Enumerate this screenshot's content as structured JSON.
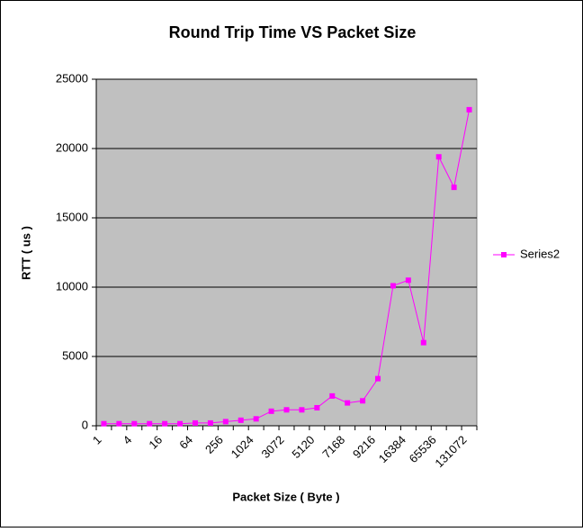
{
  "chart_data": {
    "type": "line",
    "title": "Round Trip Time  VS  Packet Size",
    "x_label": "Packet Size ( Byte )",
    "y_label": "RTT ( us )",
    "categories": [
      "1",
      null,
      "4",
      null,
      "16",
      null,
      "64",
      null,
      "256",
      null,
      "1024",
      null,
      "3072",
      null,
      "5120",
      null,
      "7168",
      null,
      "9216",
      null,
      "16384",
      null,
      "65536",
      null,
      "131072"
    ],
    "series": [
      {
        "name": "Series2",
        "color": "#ff00ff",
        "values": [
          150,
          150,
          150,
          150,
          150,
          150,
          200,
          200,
          300,
          400,
          500,
          1050,
          1150,
          1150,
          1300,
          2150,
          1650,
          1800,
          3400,
          10100,
          10500,
          6000,
          19400,
          17200,
          22800
        ]
      }
    ],
    "ylim": [
      0,
      25000
    ],
    "yticks": [
      0,
      5000,
      10000,
      15000,
      20000,
      25000
    ],
    "grid": true,
    "legend": "right"
  }
}
